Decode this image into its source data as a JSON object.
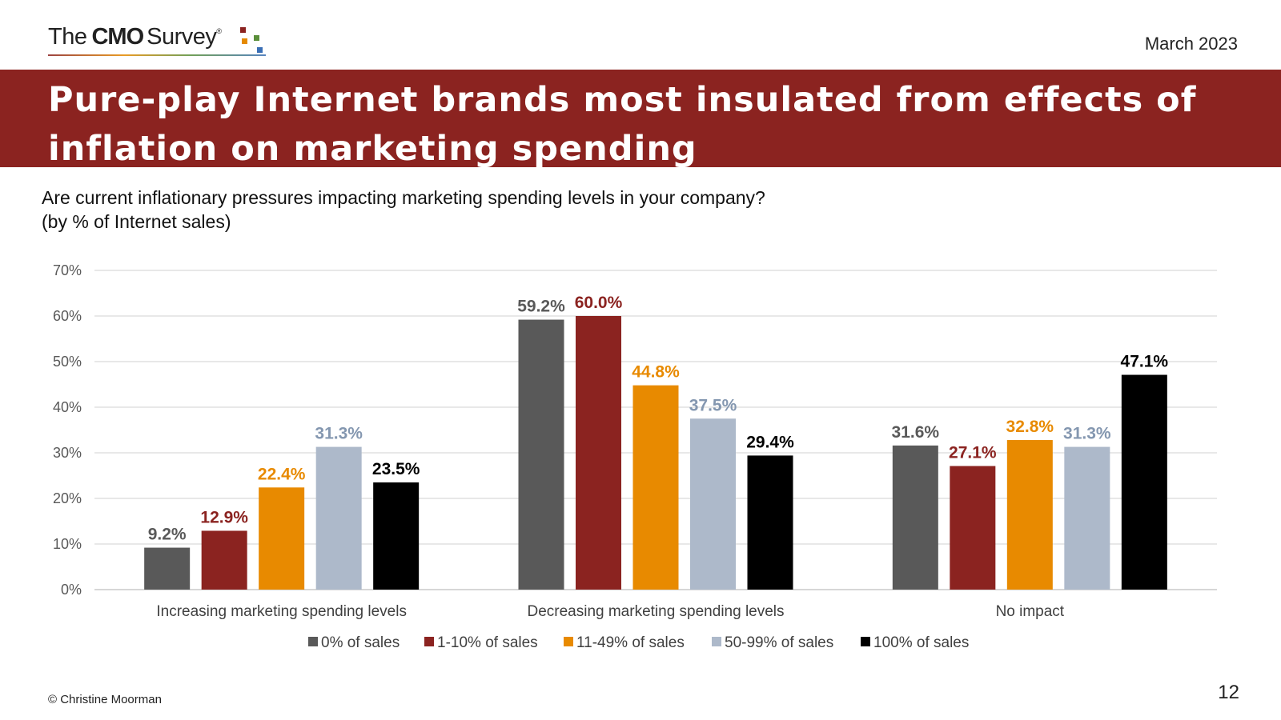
{
  "header": {
    "logo_the": "The",
    "logo_cmo": "CMO",
    "logo_survey": "Survey",
    "logo_reg": "®",
    "date": "March 2023",
    "title": "Pure-play Internet brands most insulated from effects of inflation on marketing spending"
  },
  "question": {
    "line1": "Are current inflationary pressures impacting marketing spending levels in your company?",
    "line2": "(by % of Internet sales)"
  },
  "colors": {
    "brand_red": "#8b2320",
    "logo_dot_1": "#8b2320",
    "logo_dot_2": "#e58a00",
    "logo_dot_3": "#5a8f3a",
    "logo_dot_4": "#3a6fb5"
  },
  "chart_data": {
    "type": "bar",
    "categories": [
      "Increasing marketing spending levels",
      "Decreasing marketing spending levels",
      "No impact"
    ],
    "series": [
      {
        "name": "0% of sales",
        "color": "#595959",
        "label_color": "#595959",
        "values": [
          9.2,
          59.2,
          31.6
        ],
        "labels": [
          "9.2%",
          "59.2%",
          "31.6%"
        ]
      },
      {
        "name": "1-10% of sales",
        "color": "#8b2320",
        "label_color": "#8b2320",
        "values": [
          12.9,
          60.0,
          27.1
        ],
        "labels": [
          "12.9%",
          "60.0%",
          "27.1%"
        ]
      },
      {
        "name": "11-49% of sales",
        "color": "#e88a00",
        "label_color": "#e88a00",
        "values": [
          22.4,
          44.8,
          32.8
        ],
        "labels": [
          "22.4%",
          "44.8%",
          "32.8%"
        ]
      },
      {
        "name": "50-99% of sales",
        "color": "#adb9ca",
        "label_color": "#8497b0",
        "values": [
          31.3,
          37.5,
          31.3
        ],
        "labels": [
          "31.3%",
          "37.5%",
          "31.3%"
        ]
      },
      {
        "name": "100% of sales",
        "color": "#000000",
        "label_color": "#000000",
        "values": [
          23.5,
          29.4,
          47.1
        ],
        "labels": [
          "23.5%",
          "29.4%",
          "47.1%"
        ]
      }
    ],
    "ylim": [
      0,
      70
    ],
    "yticks": [
      0,
      10,
      20,
      30,
      40,
      50,
      60,
      70
    ],
    "ytick_labels": [
      "0%",
      "10%",
      "20%",
      "30%",
      "40%",
      "50%",
      "60%",
      "70%"
    ],
    "grid": true,
    "legend": "bottom",
    "title": "",
    "xlabel": "",
    "ylabel": ""
  },
  "footer": {
    "copyright": "© Christine Moorman",
    "page_number": "12"
  }
}
